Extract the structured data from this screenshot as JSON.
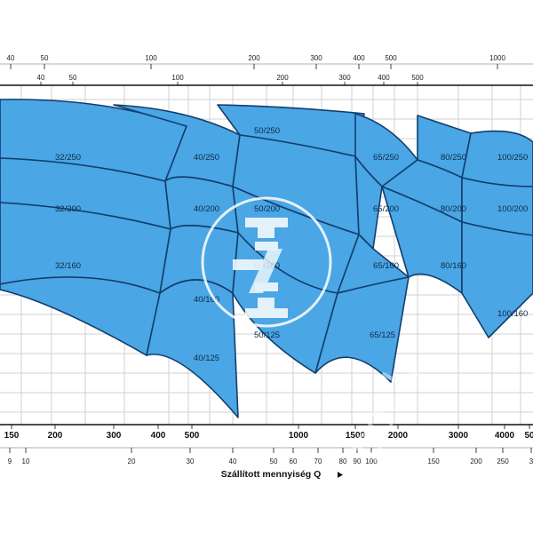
{
  "chart_data": {
    "type": "area",
    "title": "",
    "xlabel": "Szállított mennyiség Q",
    "top_axis_row1": [
      "40",
      "50",
      "100",
      "200",
      "300",
      "400",
      "500",
      "1000"
    ],
    "top_axis_row2": [
      "40",
      "50",
      "100",
      "200",
      "300",
      "400",
      "500"
    ],
    "bottom_axis_row1": [
      "150",
      "200",
      "300",
      "400",
      "500",
      "1000",
      "1500",
      "2000",
      "3000",
      "4000",
      "50"
    ],
    "bottom_axis_row2": [
      "9",
      "10",
      "20",
      "30",
      "40",
      "50",
      "60",
      "70",
      "80",
      "90",
      "100",
      "150",
      "200",
      "250",
      "3"
    ],
    "pump_models": [
      "32/250",
      "32/200",
      "32/160",
      "40/250",
      "40/200",
      "40/160",
      "40/125",
      "50/250",
      "50/200",
      "50/160",
      "50/125",
      "65/250",
      "65/200",
      "65/160",
      "65/125",
      "80/250",
      "80/200",
      "80/160",
      "100/250",
      "100/200",
      "100/160"
    ],
    "colors": {
      "fill": "#4aa6e4",
      "stroke": "#123e6e",
      "grid": "#d0d0d0",
      "axis": "#111111"
    }
  }
}
